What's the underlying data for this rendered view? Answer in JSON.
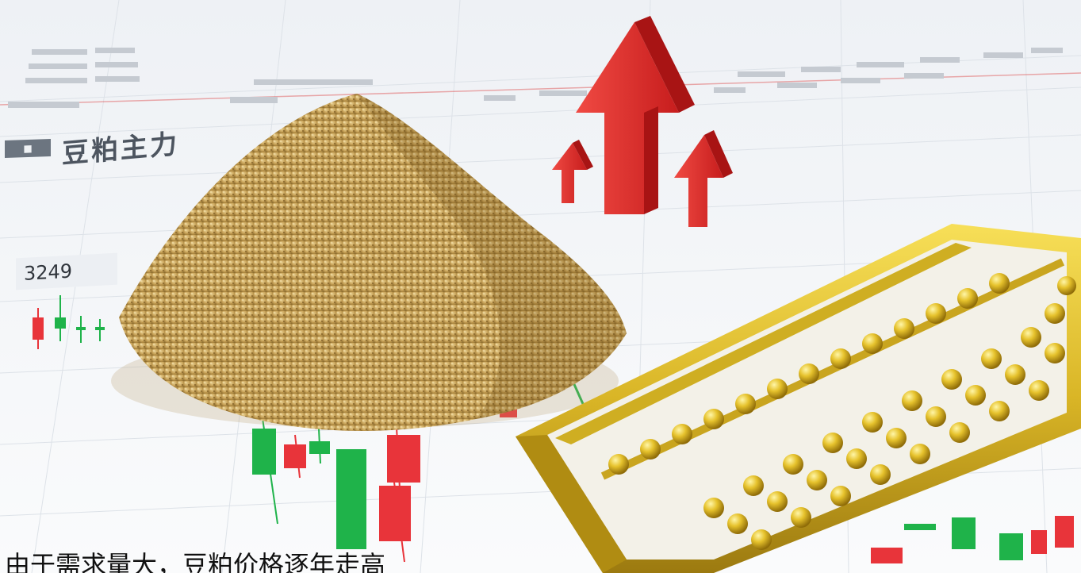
{
  "ticker_panel": {
    "contract_name": "豆粕主力",
    "price": "3249"
  },
  "caption": "由于需求量大，豆粕价格逐年走高",
  "colors": {
    "candle_up": "#e8343a",
    "candle_down": "#1fb34a",
    "arrow": "#e62a2a",
    "gold": "#d9b526",
    "soymeal": "#c9a45a"
  },
  "icons": [
    "up-arrow-icon",
    "abacus-icon",
    "soymeal-pile-icon",
    "candlestick-chart-icon"
  ]
}
